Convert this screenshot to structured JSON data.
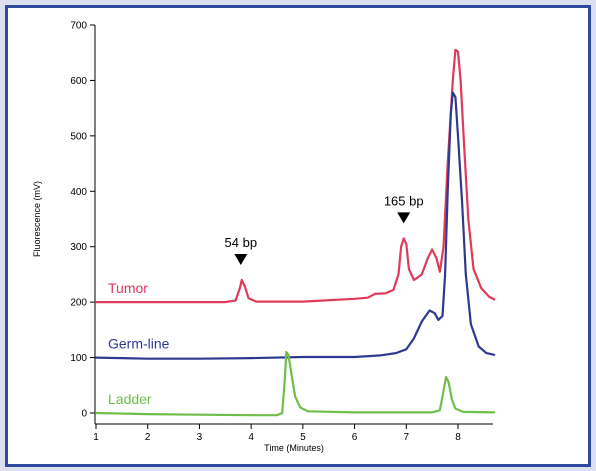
{
  "chart_data": {
    "type": "line",
    "xlabel": "Time (Minutes)",
    "ylabel": "Fluorescence (mV)",
    "xlim": [
      1,
      8.7
    ],
    "ylim": [
      -15,
      700
    ],
    "xticks": [
      1,
      2,
      3,
      4,
      5,
      6,
      7,
      8
    ],
    "yticks": [
      0,
      100,
      200,
      300,
      400,
      500,
      600,
      700
    ],
    "series": [
      {
        "name": "Tumor",
        "color": "#e03a5a",
        "points": [
          [
            1.0,
            200
          ],
          [
            3.5,
            200
          ],
          [
            3.7,
            203
          ],
          [
            3.78,
            225
          ],
          [
            3.82,
            240
          ],
          [
            3.88,
            228
          ],
          [
            3.95,
            207
          ],
          [
            4.1,
            201
          ],
          [
            5.0,
            201
          ],
          [
            6.0,
            206
          ],
          [
            6.25,
            208
          ],
          [
            6.4,
            215
          ],
          [
            6.6,
            216
          ],
          [
            6.75,
            222
          ],
          [
            6.85,
            250
          ],
          [
            6.9,
            300
          ],
          [
            6.95,
            315
          ],
          [
            7.0,
            305
          ],
          [
            7.05,
            260
          ],
          [
            7.15,
            240
          ],
          [
            7.3,
            250
          ],
          [
            7.42,
            280
          ],
          [
            7.5,
            295
          ],
          [
            7.58,
            280
          ],
          [
            7.65,
            255
          ],
          [
            7.72,
            300
          ],
          [
            7.8,
            450
          ],
          [
            7.9,
            600
          ],
          [
            7.95,
            655
          ],
          [
            8.0,
            652
          ],
          [
            8.05,
            600
          ],
          [
            8.12,
            480
          ],
          [
            8.2,
            350
          ],
          [
            8.3,
            260
          ],
          [
            8.45,
            225
          ],
          [
            8.6,
            210
          ],
          [
            8.7,
            205
          ]
        ]
      },
      {
        "name": "Germ-line",
        "color": "#2e3a8f",
        "points": [
          [
            1.0,
            100
          ],
          [
            2.0,
            98
          ],
          [
            3.0,
            98
          ],
          [
            4.0,
            99
          ],
          [
            5.0,
            101
          ],
          [
            6.0,
            101
          ],
          [
            6.5,
            104
          ],
          [
            6.8,
            108
          ],
          [
            7.0,
            115
          ],
          [
            7.15,
            135
          ],
          [
            7.3,
            165
          ],
          [
            7.45,
            185
          ],
          [
            7.55,
            180
          ],
          [
            7.62,
            168
          ],
          [
            7.7,
            175
          ],
          [
            7.75,
            250
          ],
          [
            7.8,
            400
          ],
          [
            7.86,
            540
          ],
          [
            7.9,
            578
          ],
          [
            7.95,
            570
          ],
          [
            8.0,
            500
          ],
          [
            8.08,
            380
          ],
          [
            8.15,
            250
          ],
          [
            8.25,
            160
          ],
          [
            8.4,
            120
          ],
          [
            8.55,
            108
          ],
          [
            8.7,
            105
          ]
        ]
      },
      {
        "name": "Ladder",
        "color": "#6fbe4a",
        "points": [
          [
            1.0,
            0
          ],
          [
            2.0,
            -2
          ],
          [
            3.0,
            -3
          ],
          [
            4.0,
            -4
          ],
          [
            4.5,
            -4
          ],
          [
            4.6,
            0
          ],
          [
            4.65,
            60
          ],
          [
            4.68,
            110
          ],
          [
            4.72,
            105
          ],
          [
            4.78,
            70
          ],
          [
            4.85,
            30
          ],
          [
            4.95,
            10
          ],
          [
            5.1,
            3
          ],
          [
            6.0,
            1
          ],
          [
            7.0,
            1
          ],
          [
            7.5,
            1
          ],
          [
            7.65,
            5
          ],
          [
            7.72,
            40
          ],
          [
            7.77,
            65
          ],
          [
            7.82,
            55
          ],
          [
            7.88,
            25
          ],
          [
            7.95,
            8
          ],
          [
            8.1,
            2
          ],
          [
            8.7,
            1
          ]
        ]
      }
    ],
    "annotations": [
      {
        "text": "54 bp",
        "x": 3.8,
        "y": 240
      },
      {
        "text": "165 bp",
        "x": 6.95,
        "y": 315
      }
    ]
  }
}
